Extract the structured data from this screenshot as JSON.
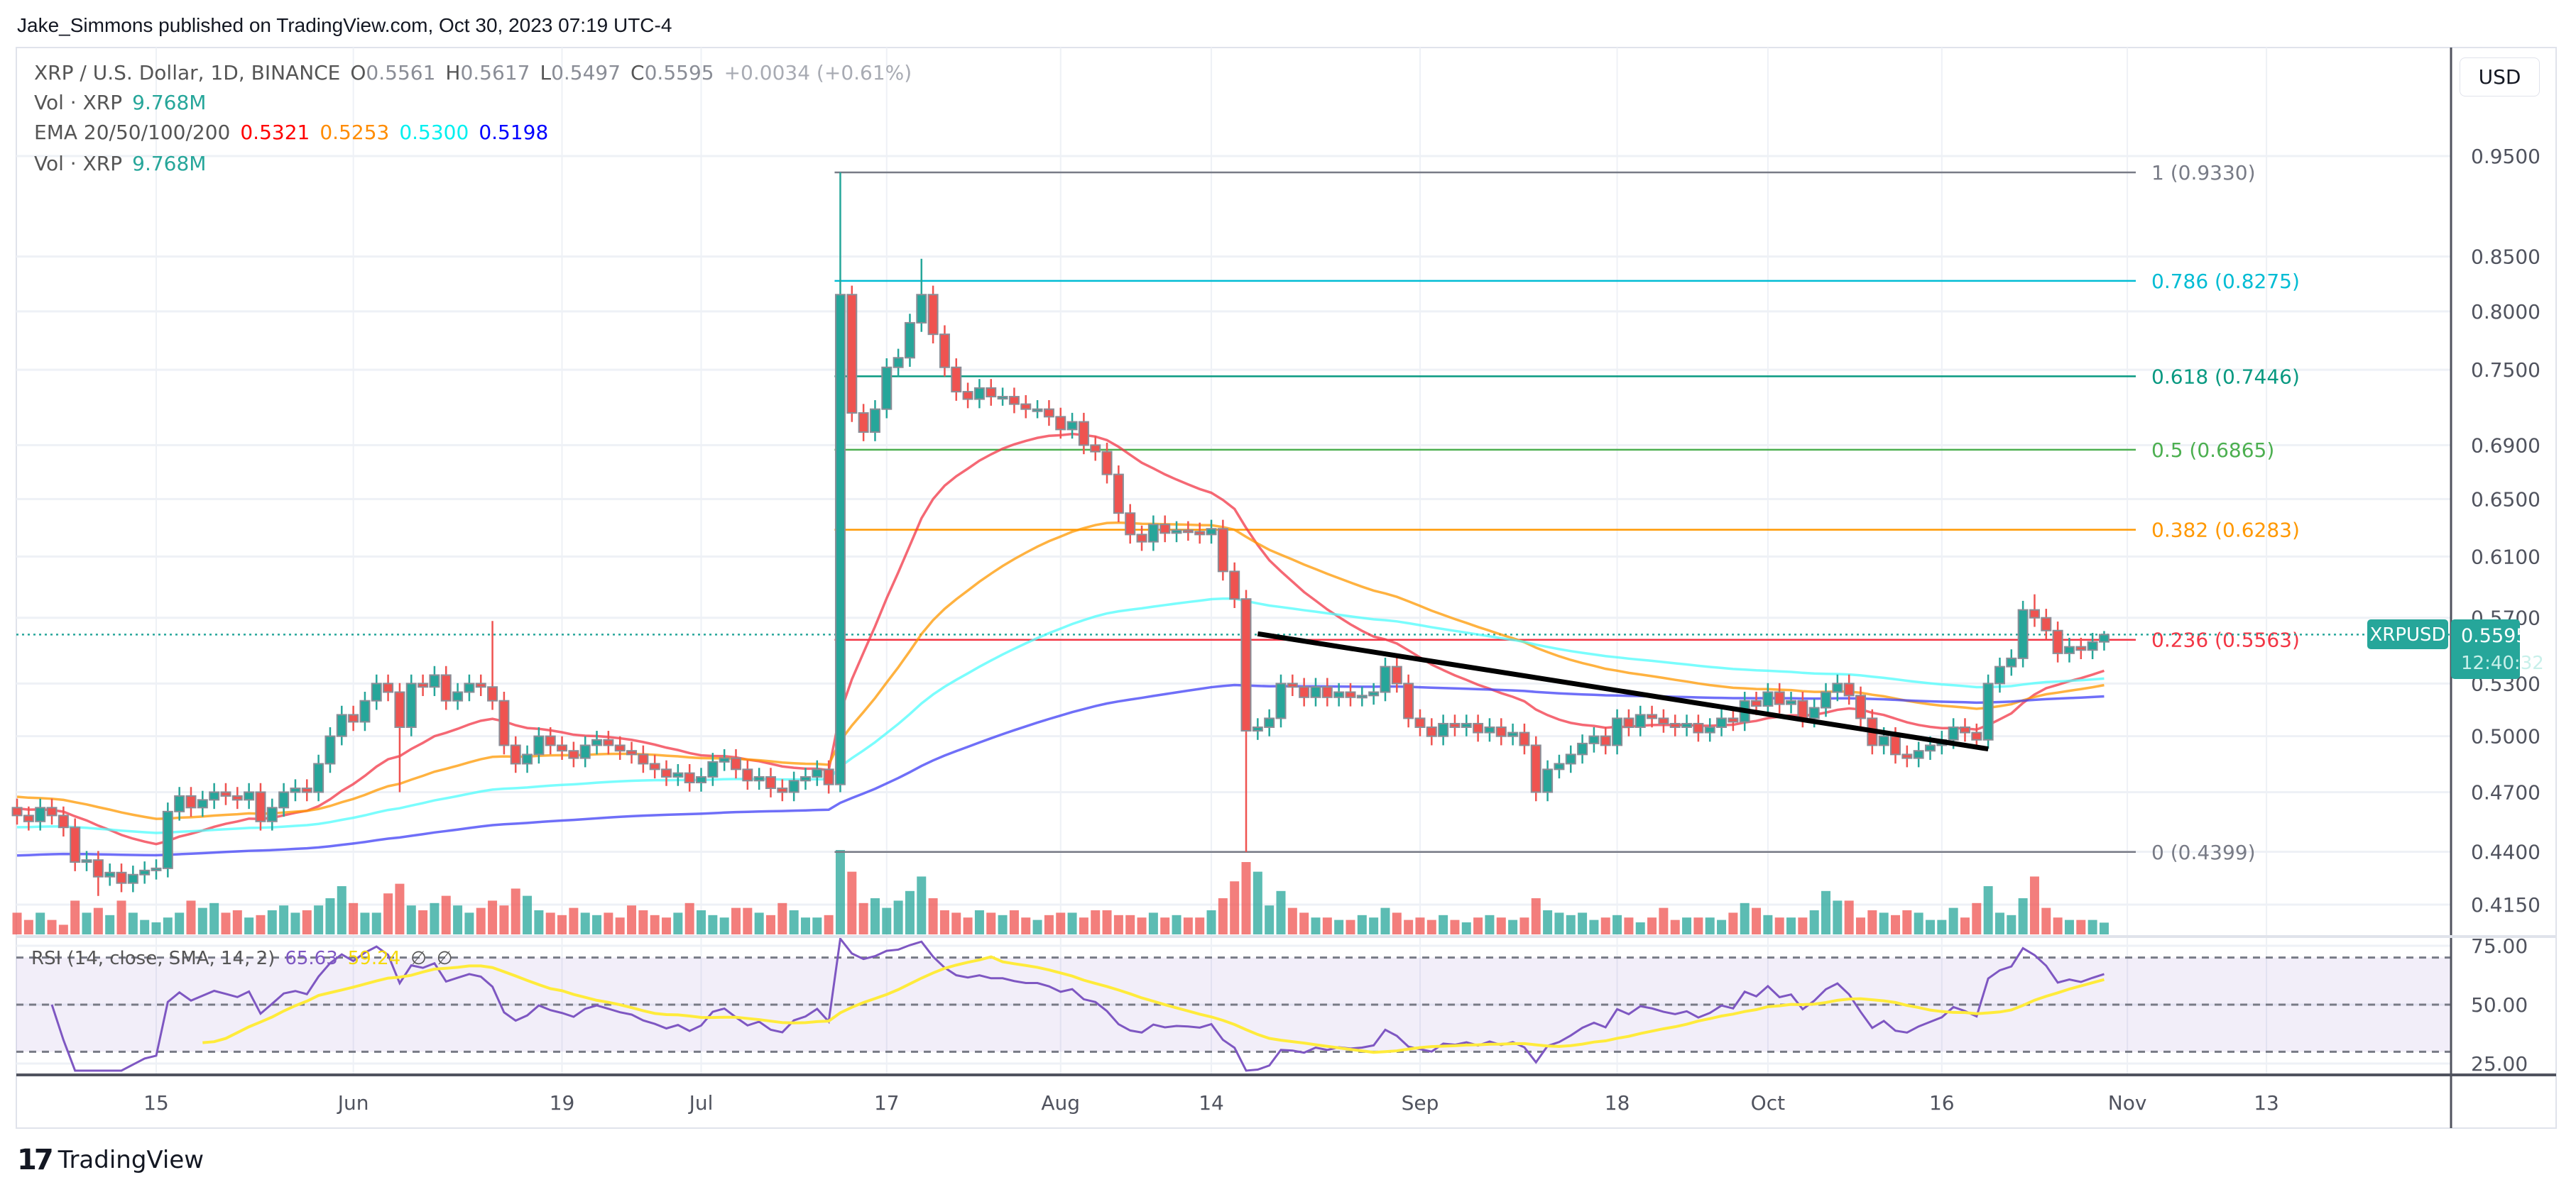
{
  "publisher_line": "Jake_Simmons published on TradingView.com, Oct 30, 2023 07:19 UTC-4",
  "legend": {
    "symbol": "XRP / U.S. Dollar, 1D, BINANCE",
    "o_label": "O",
    "o": "0.5561",
    "h_label": "H",
    "h": "0.5617",
    "l_label": "L",
    "l": "0.5497",
    "c_label": "C",
    "c": "0.5595",
    "change": "+0.0034 (+0.61%)",
    "vol_label": "Vol · XRP",
    "vol_value": "9.768M",
    "ema_label": "EMA 20/50/100/200",
    "ema_values": [
      "0.5321",
      "0.5253",
      "0.5300",
      "0.5198"
    ],
    "vol2_label": "Vol · XRP",
    "vol2_value": "9.768M",
    "rsi_label": "RSI (14, close, SMA, 14, 2)",
    "rsi_value": "65.63",
    "rsi_sma_value": "59.24",
    "rsi_na1": "∅",
    "rsi_na2": "∅"
  },
  "currency_button": "USD",
  "brand": "TradingView",
  "colors": {
    "up": "#26a69a",
    "down": "#ef5350",
    "ema20": "#f23645",
    "ema50": "#ff9800",
    "ema100": "#4dfcfc",
    "ema200": "#3f3ff5",
    "rsi": "#7e57c2",
    "rsi_sma": "#ffeb3b",
    "rsi_band": "#7e57c2",
    "price_badge": "#26a69a",
    "trendline": "#000000"
  },
  "chart_data": {
    "type": "candlestick",
    "symbol_badge": "XRPUSD",
    "last_price": "0.5595",
    "countdown": "12:40:32",
    "y_scale": "log",
    "ylim": [
      0.4,
      0.99
    ],
    "price_ticks": [
      "0.9500",
      "0.8500",
      "0.8000",
      "0.7500",
      "0.6900",
      "0.6500",
      "0.6100",
      "0.5700",
      "0.5300",
      "0.5000",
      "0.4700",
      "0.4400",
      "0.4150"
    ],
    "date_ticks": [
      {
        "label": "15",
        "date": "2023-05-15"
      },
      {
        "label": "Jun",
        "date": "2023-06-01"
      },
      {
        "label": "19",
        "date": "2023-06-19"
      },
      {
        "label": "Jul",
        "date": "2023-07-01"
      },
      {
        "label": "17",
        "date": "2023-07-17"
      },
      {
        "label": "Aug",
        "date": "2023-08-01"
      },
      {
        "label": "14",
        "date": "2023-08-14"
      },
      {
        "label": "Sep",
        "date": "2023-09-01"
      },
      {
        "label": "18",
        "date": "2023-09-18"
      },
      {
        "label": "Oct",
        "date": "2023-10-01"
      },
      {
        "label": "16",
        "date": "2023-10-16"
      },
      {
        "label": "Nov",
        "date": "2023-11-01"
      },
      {
        "label": "13",
        "date": "2023-11-13"
      }
    ],
    "first_date": "2023-05-03",
    "close": [
      0.458,
      0.455,
      0.462,
      0.458,
      0.452,
      0.435,
      0.436,
      0.428,
      0.43,
      0.425,
      0.429,
      0.431,
      0.432,
      0.46,
      0.468,
      0.462,
      0.466,
      0.47,
      0.468,
      0.466,
      0.47,
      0.455,
      0.462,
      0.47,
      0.472,
      0.47,
      0.485,
      0.5,
      0.512,
      0.508,
      0.52,
      0.53,
      0.525,
      0.505,
      0.53,
      0.528,
      0.535,
      0.52,
      0.525,
      0.53,
      0.528,
      0.52,
      0.495,
      0.485,
      0.49,
      0.5,
      0.495,
      0.492,
      0.488,
      0.495,
      0.498,
      0.495,
      0.492,
      0.49,
      0.485,
      0.482,
      0.478,
      0.48,
      0.475,
      0.478,
      0.486,
      0.488,
      0.482,
      0.476,
      0.478,
      0.472,
      0.47,
      0.476,
      0.478,
      0.482,
      0.474,
      0.815,
      0.715,
      0.7,
      0.718,
      0.752,
      0.76,
      0.79,
      0.815,
      0.78,
      0.752,
      0.732,
      0.726,
      0.735,
      0.728,
      0.728,
      0.722,
      0.718,
      0.718,
      0.712,
      0.702,
      0.708,
      0.69,
      0.685,
      0.668,
      0.64,
      0.625,
      0.62,
      0.632,
      0.626,
      0.628,
      0.627,
      0.625,
      0.629,
      0.6,
      0.582,
      0.503,
      0.505,
      0.51,
      0.53,
      0.528,
      0.522,
      0.528,
      0.522,
      0.525,
      0.522,
      0.523,
      0.525,
      0.54,
      0.53,
      0.51,
      0.505,
      0.5,
      0.507,
      0.505,
      0.507,
      0.502,
      0.505,
      0.5,
      0.502,
      0.495,
      0.47,
      0.482,
      0.485,
      0.49,
      0.496,
      0.5,
      0.495,
      0.51,
      0.505,
      0.512,
      0.51,
      0.507,
      0.505,
      0.507,
      0.502,
      0.505,
      0.51,
      0.508,
      0.52,
      0.517,
      0.525,
      0.518,
      0.52,
      0.51,
      0.516,
      0.525,
      0.53,
      0.523,
      0.51,
      0.495,
      0.5,
      0.49,
      0.488,
      0.492,
      0.495,
      0.498,
      0.505,
      0.502,
      0.498,
      0.53,
      0.54,
      0.545,
      0.575,
      0.57,
      0.562,
      0.548,
      0.552,
      0.55,
      0.555,
      0.5595
    ],
    "first_open": 0.462,
    "notable_wicks": [
      {
        "date": "2023-05-10",
        "low": 0.419
      },
      {
        "date": "2023-06-05",
        "low": 0.47
      },
      {
        "date": "2023-06-13",
        "high": 0.568
      },
      {
        "date": "2023-07-13",
        "high": 0.933,
        "low": 0.47
      },
      {
        "date": "2023-07-20",
        "high": 0.848
      },
      {
        "date": "2023-08-17",
        "low": 0.4399
      },
      {
        "date": "2023-10-24",
        "high": 0.585
      },
      {
        "date": "2023-10-30",
        "high": 0.5617,
        "low": 0.5497
      }
    ],
    "volume_millions": [
      18,
      12,
      18,
      12,
      8,
      28,
      18,
      22,
      16,
      28,
      18,
      12,
      10,
      14,
      18,
      28,
      22,
      26,
      18,
      20,
      14,
      16,
      20,
      24,
      18,
      20,
      24,
      30,
      40,
      26,
      18,
      18,
      34,
      42,
      24,
      20,
      26,
      32,
      24,
      18,
      22,
      28,
      24,
      38,
      32,
      20,
      18,
      16,
      22,
      18,
      16,
      18,
      14,
      24,
      20,
      16,
      14,
      18,
      26,
      20,
      16,
      14,
      22,
      22,
      18,
      16,
      26,
      20,
      14,
      14,
      16,
      70,
      52,
      26,
      30,
      22,
      28,
      36,
      48,
      30,
      20,
      18,
      14,
      20,
      18,
      16,
      20,
      14,
      12,
      16,
      18,
      18,
      14,
      20,
      20,
      16,
      16,
      14,
      18,
      14,
      16,
      14,
      14,
      20,
      30,
      44,
      60,
      52,
      24,
      36,
      22,
      18,
      14,
      14,
      12,
      12,
      16,
      14,
      22,
      18,
      12,
      14,
      12,
      16,
      12,
      10,
      14,
      16,
      14,
      12,
      14,
      30,
      20,
      18,
      16,
      18,
      12,
      14,
      16,
      14,
      10,
      14,
      22,
      12,
      14,
      14,
      14,
      12,
      18,
      26,
      22,
      16,
      14,
      14,
      14,
      20,
      36,
      28,
      28,
      14,
      20,
      18,
      16,
      20,
      18,
      12,
      12,
      22,
      14,
      26,
      40,
      18,
      16,
      30,
      48,
      22,
      14,
      12,
      12,
      12,
      9.768
    ],
    "fibonacci": {
      "anchor_date": "2023-07-13",
      "levels": [
        {
          "ratio": "1",
          "price": 0.933,
          "label": "1 (0.9330)",
          "color": "#787b86"
        },
        {
          "ratio": "0.786",
          "price": 0.8275,
          "label": "0.786 (0.8275)",
          "color": "#00bcd4"
        },
        {
          "ratio": "0.618",
          "price": 0.7446,
          "label": "0.618 (0.7446)",
          "color": "#089981"
        },
        {
          "ratio": "0.5",
          "price": 0.6865,
          "label": "0.5 (0.6865)",
          "color": "#4caf50"
        },
        {
          "ratio": "0.382",
          "price": 0.6283,
          "label": "0.382 (0.6283)",
          "color": "#ff9800"
        },
        {
          "ratio": "0.236",
          "price": 0.5563,
          "label": "0.236 (0.5563)",
          "color": "#f23645"
        },
        {
          "ratio": "0",
          "price": 0.4399,
          "label": "0 (0.4399)",
          "color": "#787b86"
        }
      ]
    },
    "trendline": {
      "start": {
        "date": "2023-08-18",
        "price": 0.56
      },
      "end": {
        "date": "2023-10-20",
        "price": 0.493
      }
    },
    "rsi_ticks": [
      "75.00",
      "50.00",
      "25.00"
    ],
    "rsi_bands": [
      70,
      50,
      30
    ]
  }
}
